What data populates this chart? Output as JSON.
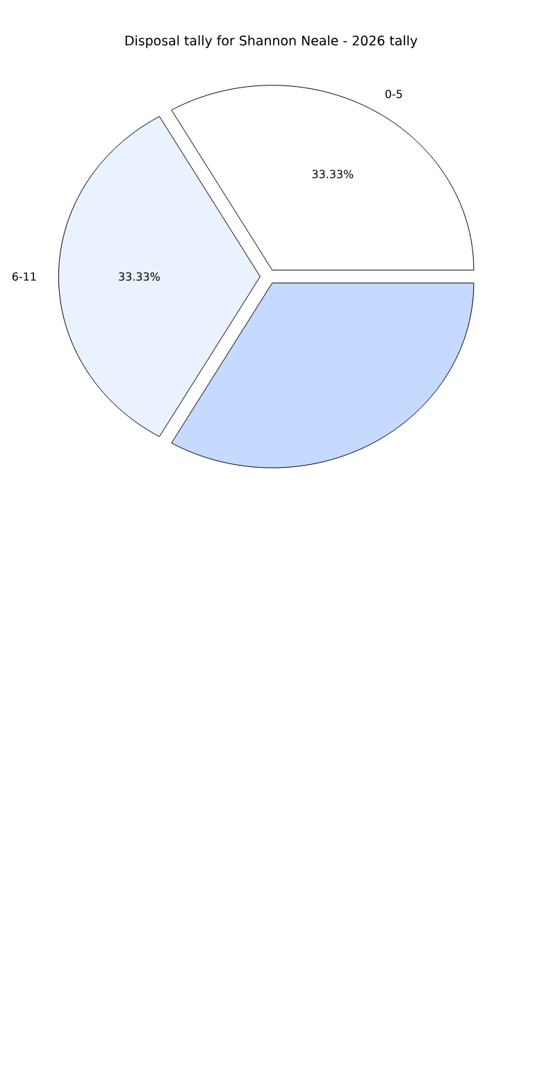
{
  "chart_data": {
    "type": "pie",
    "title": "Disposal tally for Shannon Neale - 2026 tally",
    "categories": [
      "0-5",
      "6-11",
      null
    ],
    "values": [
      33.33,
      33.33,
      33.33
    ],
    "colors": [
      "#ffffff",
      "#eaf1ff",
      "#c6d9ff"
    ],
    "value_labels": [
      "33.33%",
      "33.33%",
      null
    ]
  }
}
